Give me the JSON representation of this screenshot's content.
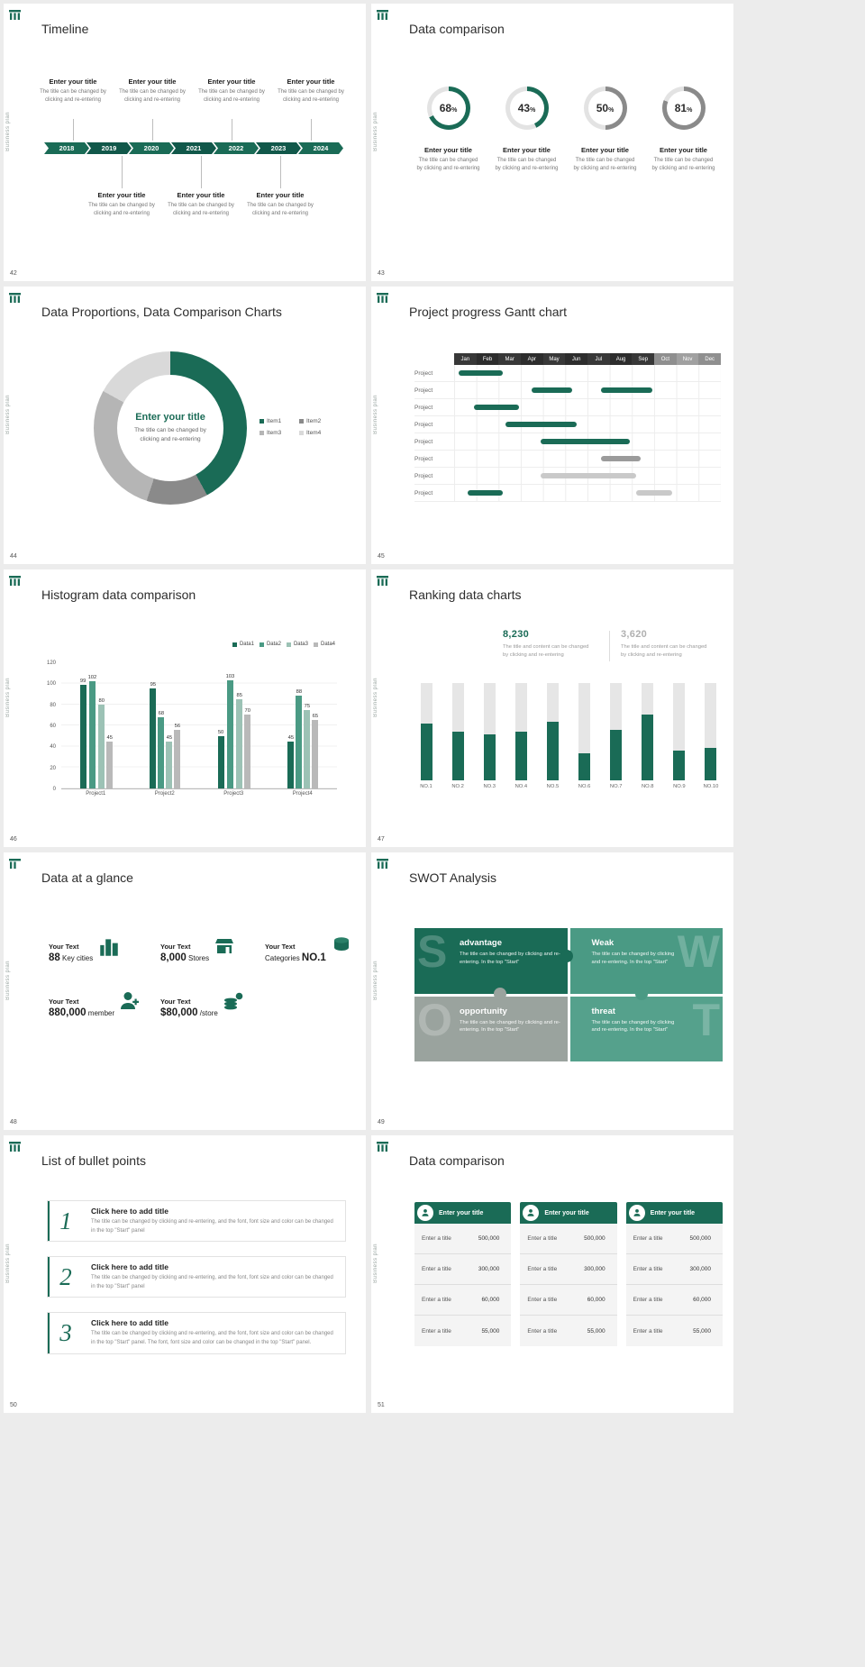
{
  "theme": {
    "green": "#1a6b56",
    "green_dark": "#11584a",
    "green_mid": "#4a9a84",
    "green_light": "#9cc2b5",
    "gray": "#8f8f8f",
    "gray_mid": "#b5b5b5",
    "gray_light": "#d9d9d9",
    "track": "#e3e3e3"
  },
  "common": {
    "side_label": "Business plan",
    "enter_title": "Enter your title",
    "change_desc": "The title can be changed by clicking and re-entering",
    "percent_sign": "%"
  },
  "slides": {
    "timeline": {
      "number": "42",
      "title": "Timeline",
      "years": [
        "2018",
        "2019",
        "2020",
        "2021",
        "2022",
        "2023",
        "2024"
      ]
    },
    "rings": {
      "number": "43",
      "title": "Data comparison",
      "items": [
        {
          "pct": 68,
          "color": "#1a6b56"
        },
        {
          "pct": 43,
          "color": "#1a6b56"
        },
        {
          "pct": 50,
          "color": "#8a8a8a"
        },
        {
          "pct": 81,
          "color": "#8a8a8a"
        }
      ]
    },
    "donut": {
      "number": "44",
      "title": "Data Proportions, Data Comparison Charts",
      "center_title": "Enter your title",
      "center_desc": "The title can be changed by clicking and re-entering",
      "segments": [
        {
          "label": "Item1",
          "value": 42,
          "color": "#1a6b56"
        },
        {
          "label": "Item2",
          "value": 13,
          "color": "#8a8a8a"
        },
        {
          "label": "Item3",
          "value": 28,
          "color": "#b5b5b5"
        },
        {
          "label": "Item4",
          "value": 17,
          "color": "#d9d9d9"
        }
      ]
    },
    "gantt": {
      "number": "45",
      "title": "Project progress Gantt chart",
      "months": [
        "Jan",
        "Feb",
        "Mar",
        "Apr",
        "May",
        "Jun",
        "Jul",
        "Aug",
        "Sep",
        "Oct",
        "Nov",
        "Dec"
      ],
      "row_label": "Project",
      "rows": [
        {
          "bars": [
            {
              "start": 0.2,
              "end": 2.2,
              "color": "green"
            }
          ]
        },
        {
          "bars": [
            {
              "start": 3.5,
              "end": 5.3,
              "color": "green"
            },
            {
              "start": 6.6,
              "end": 8.9,
              "color": "green"
            }
          ]
        },
        {
          "bars": [
            {
              "start": 0.9,
              "end": 2.9,
              "color": "green"
            }
          ]
        },
        {
          "bars": [
            {
              "start": 2.3,
              "end": 5.5,
              "color": "green"
            }
          ]
        },
        {
          "bars": [
            {
              "start": 3.9,
              "end": 7.9,
              "color": "green"
            }
          ]
        },
        {
          "bars": [
            {
              "start": 6.6,
              "end": 8.4,
              "color": "gray"
            }
          ]
        },
        {
          "bars": [
            {
              "start": 3.9,
              "end": 8.2,
              "color": "lightgray"
            }
          ]
        },
        {
          "bars": [
            {
              "start": 0.6,
              "end": 2.2,
              "color": "green"
            },
            {
              "start": 8.2,
              "end": 9.8,
              "color": "lightgray"
            }
          ]
        }
      ]
    },
    "histogram": {
      "number": "46",
      "title": "Histogram data comparison",
      "categories": [
        "Project1",
        "Project2",
        "Project3",
        "Project4"
      ],
      "series": [
        {
          "name": "Data1",
          "color": "#1a6b56",
          "values": [
            99,
            95,
            50,
            45
          ]
        },
        {
          "name": "Data2",
          "color": "#4a9a84",
          "values": [
            102,
            68,
            103,
            88
          ]
        },
        {
          "name": "Data3",
          "color": "#9cc2b5",
          "values": [
            80,
            45,
            85,
            75
          ]
        },
        {
          "name": "Data4",
          "color": "#b9b9b9",
          "values": [
            45,
            56,
            70,
            65
          ]
        }
      ],
      "y_ticks": [
        0,
        20,
        40,
        60,
        80,
        100,
        120
      ],
      "y_max": 120
    },
    "ranking": {
      "number": "47",
      "title": "Ranking data charts",
      "stat1": {
        "value": "8,230",
        "desc": "The title and content can be changed by clicking and re-entering"
      },
      "stat2": {
        "value": "3,620",
        "desc": "The title and content can be changed by clicking and re-entering"
      },
      "categories": [
        "NO.1",
        "NO.2",
        "NO.3",
        "NO.4",
        "NO.5",
        "NO.6",
        "NO.7",
        "NO.8",
        "NO.9",
        "NO.10"
      ],
      "fill_pct": [
        58,
        50,
        47,
        50,
        60,
        28,
        52,
        68,
        31,
        33
      ]
    },
    "glance": {
      "number": "48",
      "title": "Data at a glance",
      "items": [
        {
          "label": "Your Text",
          "pre": "",
          "strong": "88",
          "post": " Key cities",
          "icon": "city-icon"
        },
        {
          "label": "Your Text",
          "pre": "",
          "strong": "8,000",
          "post": " Stores",
          "icon": "store-icon"
        },
        {
          "label": "Your Text",
          "pre": "Categories ",
          "strong": "NO.1",
          "post": "",
          "icon": "category-icon"
        },
        {
          "label": "Your Text",
          "pre": "",
          "strong": "880,000",
          "post": " member",
          "icon": "member-icon"
        },
        {
          "label": "Your Text",
          "pre": "",
          "strong": "$80,000",
          "post": " /store",
          "icon": "coins-icon"
        }
      ]
    },
    "swot": {
      "number": "49",
      "title": "SWOT Analysis",
      "quads": [
        {
          "letter": "S",
          "heading": "advantage",
          "desc": "The title can be changed by clicking and re-entering. In the top \"Start\"",
          "color": "#1a6b56"
        },
        {
          "letter": "W",
          "heading": "Weak",
          "desc": "The title can be changed by clicking and re-entering. In the top \"Start\"",
          "color": "#4a9a84"
        },
        {
          "letter": "O",
          "heading": "opportunity",
          "desc": "The title can be changed by clicking and re-entering. In the top \"Start\"",
          "color": "#9aa39e"
        },
        {
          "letter": "T",
          "heading": "threat",
          "desc": "The title can be changed by clicking and re-entering. In the top \"Start\"",
          "color": "#55a18c"
        }
      ]
    },
    "bullets": {
      "number": "50",
      "title": "List of bullet points",
      "items": [
        {
          "num": "1",
          "heading": "Click here to add title",
          "desc": "The title can be changed by clicking and re-entering, and the font, font size and color can be changed in the top \"Start\" panel"
        },
        {
          "num": "2",
          "heading": "Click here to add title",
          "desc": "The title can be changed by clicking and re-entering, and the font, font size and color can be changed in the top \"Start\" panel"
        },
        {
          "num": "3",
          "heading": "Click here to add title",
          "desc": "The title can be changed by clicking and re-entering, and the font, font size and color can be changed in the top \"Start\" panel. The font, font size and color can be changed in the top \"Start\" panel."
        }
      ]
    },
    "tables": {
      "number": "51",
      "title": "Data comparison",
      "cards": [
        {
          "header": "Enter your title",
          "rows": [
            [
              "Enter a title",
              "500,000"
            ],
            [
              "Enter a title",
              "300,000"
            ],
            [
              "Enter a title",
              "60,000"
            ],
            [
              "Enter a title",
              "55,000"
            ]
          ]
        },
        {
          "header": "Enter your title",
          "rows": [
            [
              "Enter a title",
              "500,000"
            ],
            [
              "Enter a title",
              "300,000"
            ],
            [
              "Enter a title",
              "60,000"
            ],
            [
              "Enter a title",
              "55,000"
            ]
          ]
        },
        {
          "header": "Enter your title",
          "rows": [
            [
              "Enter a title",
              "500,000"
            ],
            [
              "Enter a title",
              "300,000"
            ],
            [
              "Enter a title",
              "60,000"
            ],
            [
              "Enter a title",
              "55,000"
            ]
          ]
        }
      ]
    }
  }
}
